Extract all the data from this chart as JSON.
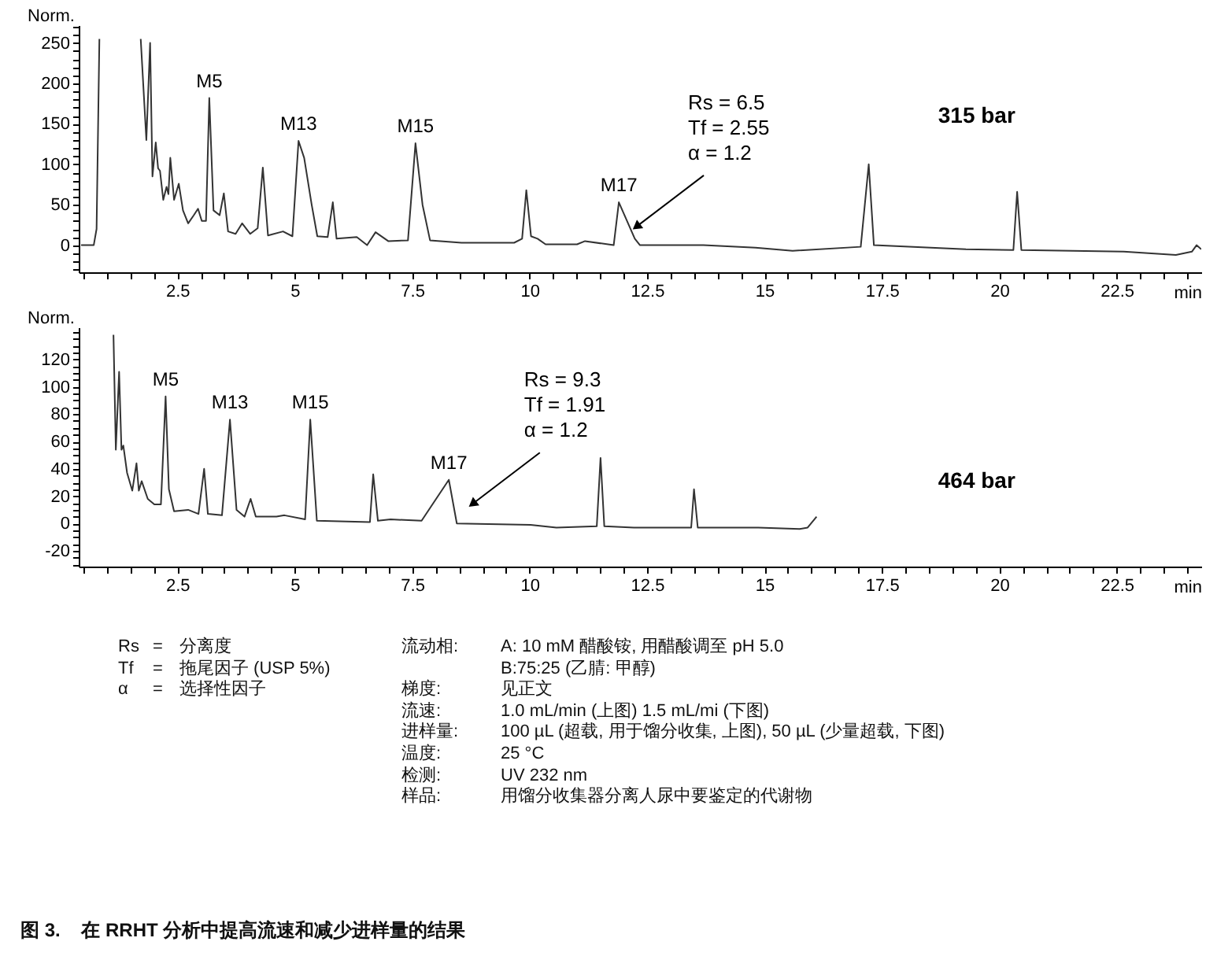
{
  "chart_data": [
    {
      "type": "line",
      "title": "315 bar",
      "ylabel": "Norm.",
      "xlabel": "min",
      "xlim": [
        0.4,
        24.3
      ],
      "ylim": [
        -33.5,
        272
      ],
      "xticks": [
        {
          "value": 0.5,
          "label": null
        },
        {
          "value": 1,
          "label": null
        },
        {
          "value": 1.5,
          "label": null
        },
        {
          "value": 2,
          "label": null
        },
        2.5,
        {
          "value": 3,
          "label": null
        },
        {
          "value": 3.5,
          "label": null
        },
        {
          "value": 4,
          "label": null
        },
        {
          "value": 4.5,
          "label": null
        },
        5,
        {
          "value": 5.5,
          "label": null
        },
        {
          "value": 6,
          "label": null
        },
        {
          "value": 6.5,
          "label": null
        },
        {
          "value": 7,
          "label": null
        },
        7.5,
        {
          "value": 8,
          "label": null
        },
        {
          "value": 8.5,
          "label": null
        },
        {
          "value": 9,
          "label": null
        },
        {
          "value": 9.5,
          "label": null
        },
        10,
        {
          "value": 10.5,
          "label": null
        },
        {
          "value": 11,
          "label": null
        },
        {
          "value": 11.5,
          "label": null
        },
        {
          "value": 12,
          "label": null
        },
        12.5,
        {
          "value": 13,
          "label": null
        },
        {
          "value": 13.5,
          "label": null
        },
        {
          "value": 14,
          "label": null
        },
        {
          "value": 14.5,
          "label": null
        },
        15,
        {
          "value": 15.5,
          "label": null
        },
        {
          "value": 16,
          "label": null
        },
        {
          "value": 16.5,
          "label": null
        },
        {
          "value": 17,
          "label": null
        },
        17.5,
        {
          "value": 18,
          "label": null
        },
        {
          "value": 18.5,
          "label": null
        },
        {
          "value": 19,
          "label": null
        },
        {
          "value": 19.5,
          "label": null
        },
        20,
        {
          "value": 20.5,
          "label": null
        },
        {
          "value": 21,
          "label": null
        },
        {
          "value": 21.5,
          "label": null
        },
        {
          "value": 22,
          "label": null
        },
        22.5,
        {
          "value": 23,
          "label": null
        },
        {
          "value": 23.5,
          "label": null
        },
        {
          "value": 24,
          "label": null
        }
      ],
      "yticks": [
        {
          "value": -30,
          "label": null
        },
        {
          "value": -20,
          "label": null
        },
        {
          "value": -10,
          "label": null
        },
        0,
        {
          "value": 10,
          "label": null
        },
        {
          "value": 20,
          "label": null
        },
        {
          "value": 30,
          "label": null
        },
        {
          "value": 40,
          "label": null
        },
        50,
        {
          "value": 60,
          "label": null
        },
        {
          "value": 70,
          "label": null
        },
        {
          "value": 80,
          "label": null
        },
        {
          "value": 90,
          "label": null
        },
        100,
        {
          "value": 110,
          "label": null
        },
        {
          "value": 120,
          "label": null
        },
        {
          "value": 130,
          "label": null
        },
        {
          "value": 140,
          "label": null
        },
        150,
        {
          "value": 160,
          "label": null
        },
        {
          "value": 170,
          "label": null
        },
        {
          "value": 180,
          "label": null
        },
        {
          "value": 190,
          "label": null
        },
        200,
        {
          "value": 210,
          "label": null
        },
        {
          "value": 220,
          "label": null
        },
        {
          "value": 230,
          "label": null
        },
        {
          "value": 240,
          "label": null
        },
        250,
        {
          "value": 260,
          "label": null
        },
        {
          "value": 270,
          "label": null
        }
      ],
      "series": [
        {
          "color": "#333333",
          "x": [
            0.45,
            0.72,
            0.78,
            0.84,
            1.3,
            1.72,
            1.84,
            1.92,
            1.97,
            2.04,
            2.09,
            2.13,
            2.2,
            2.27,
            2.31,
            2.35,
            2.43,
            2.53,
            2.62,
            2.73,
            2.85,
            2.94,
            3.02,
            3.11,
            3.18,
            3.27,
            3.4,
            3.49,
            3.58,
            3.74,
            3.88,
            4.05,
            4.21,
            4.32,
            4.43,
            4.75,
            4.95,
            5.08,
            5.2,
            5.36,
            5.48,
            5.7,
            5.81,
            5.89,
            6.32,
            6.54,
            6.72,
            6.99,
            7.41,
            7.57,
            7.72,
            7.88,
            8.55,
            9.67,
            9.84,
            9.93,
            10.03,
            10.17,
            10.34,
            11.01,
            11.18,
            11.79,
            11.9,
            12.24,
            12.35,
            13.7,
            14.81,
            15.6,
            17.05,
            17.22,
            17.33,
            19.29,
            20.3,
            20.38,
            20.47,
            22.65,
            23.76,
            24.1,
            24.2,
            24.3
          ],
          "values": [
            0,
            0,
            20,
            255,
            null,
            255,
            130,
            250,
            85,
            127,
            95,
            92,
            56,
            72,
            63,
            108,
            56,
            76,
            43,
            27,
            37,
            45,
            30,
            30,
            182,
            43,
            37,
            64,
            17,
            14,
            27,
            14,
            21,
            96,
            12,
            17,
            11,
            129,
            108,
            50,
            11,
            10,
            53,
            8,
            10,
            0,
            16,
            5,
            6,
            126,
            50,
            6,
            3,
            3,
            8,
            68,
            11,
            8,
            1,
            1,
            5,
            0,
            53,
            8,
            0,
            0,
            -3,
            -7,
            -2,
            100,
            0,
            -5,
            -6,
            66,
            -6,
            -8,
            -12,
            -8,
            0,
            -5
          ]
        }
      ],
      "annotations": [
        {
          "text": "M5",
          "x": 3.18,
          "y": 182
        },
        {
          "text": "M13",
          "x": 5.08,
          "y": 129
        },
        {
          "text": "M15",
          "x": 7.57,
          "y": 126
        },
        {
          "text": "M17",
          "x": 11.9,
          "y": 53
        },
        {
          "text": "Rs = 6.5\nTf = 2.55\nα = 1.2",
          "x": 12.3,
          "y": 24
        }
      ]
    },
    {
      "type": "line",
      "title": "464 bar",
      "ylabel": "Norm.",
      "xlabel": "min",
      "xlim": [
        0.4,
        24.3
      ],
      "ylim": [
        -31.5,
        143.5
      ],
      "xticks": [
        {
          "value": 0.5,
          "label": null
        },
        {
          "value": 1,
          "label": null
        },
        {
          "value": 1.5,
          "label": null
        },
        {
          "value": 2,
          "label": null
        },
        2.5,
        {
          "value": 3,
          "label": null
        },
        {
          "value": 3.5,
          "label": null
        },
        {
          "value": 4,
          "label": null
        },
        {
          "value": 4.5,
          "label": null
        },
        5,
        {
          "value": 5.5,
          "label": null
        },
        {
          "value": 6,
          "label": null
        },
        {
          "value": 6.5,
          "label": null
        },
        {
          "value": 7,
          "label": null
        },
        7.5,
        {
          "value": 8,
          "label": null
        },
        {
          "value": 8.5,
          "label": null
        },
        {
          "value": 9,
          "label": null
        },
        {
          "value": 9.5,
          "label": null
        },
        10,
        {
          "value": 10.5,
          "label": null
        },
        {
          "value": 11,
          "label": null
        },
        {
          "value": 11.5,
          "label": null
        },
        {
          "value": 12,
          "label": null
        },
        12.5,
        {
          "value": 13,
          "label": null
        },
        {
          "value": 13.5,
          "label": null
        },
        {
          "value": 14,
          "label": null
        },
        {
          "value": 14.5,
          "label": null
        },
        15,
        {
          "value": 15.5,
          "label": null
        },
        {
          "value": 16,
          "label": null
        },
        {
          "value": 16.5,
          "label": null
        },
        {
          "value": 17,
          "label": null
        },
        17.5,
        {
          "value": 18,
          "label": null
        },
        {
          "value": 18.5,
          "label": null
        },
        {
          "value": 19,
          "label": null
        },
        {
          "value": 19.5,
          "label": null
        },
        20,
        {
          "value": 20.5,
          "label": null
        },
        {
          "value": 21,
          "label": null
        },
        {
          "value": 21.5,
          "label": null
        },
        {
          "value": 22,
          "label": null
        },
        22.5,
        {
          "value": 23,
          "label": null
        },
        {
          "value": 23.5,
          "label": null
        },
        {
          "value": 24,
          "label": null
        }
      ],
      "yticks": [
        {
          "value": -30,
          "label": null
        },
        {
          "value": -25,
          "label": null
        },
        -20,
        {
          "value": -15,
          "label": null
        },
        {
          "value": -10,
          "label": null
        },
        {
          "value": -5,
          "label": null
        },
        0,
        {
          "value": 5,
          "label": null
        },
        {
          "value": 10,
          "label": null
        },
        {
          "value": 15,
          "label": null
        },
        20,
        {
          "value": 25,
          "label": null
        },
        {
          "value": 30,
          "label": null
        },
        {
          "value": 35,
          "label": null
        },
        40,
        {
          "value": 45,
          "label": null
        },
        {
          "value": 50,
          "label": null
        },
        {
          "value": 55,
          "label": null
        },
        60,
        {
          "value": 65,
          "label": null
        },
        {
          "value": 70,
          "label": null
        },
        {
          "value": 75,
          "label": null
        },
        80,
        {
          "value": 85,
          "label": null
        },
        {
          "value": 90,
          "label": null
        },
        {
          "value": 95,
          "label": null
        },
        100,
        {
          "value": 105,
          "label": null
        },
        {
          "value": 110,
          "label": null
        },
        {
          "value": 115,
          "label": null
        },
        120,
        {
          "value": 125,
          "label": null
        },
        {
          "value": 130,
          "label": null
        },
        {
          "value": 135,
          "label": null
        },
        {
          "value": 140,
          "label": null
        }
      ],
      "series": [
        {
          "color": "#333333",
          "x": [
            1.14,
            1.19,
            1.26,
            1.31,
            1.35,
            1.43,
            1.54,
            1.63,
            1.68,
            1.74,
            1.87,
            2.01,
            2.15,
            2.25,
            2.32,
            2.43,
            2.73,
            2.95,
            3.07,
            3.15,
            3.45,
            3.62,
            3.76,
            3.93,
            4.06,
            4.17,
            4.61,
            4.78,
            5.22,
            5.33,
            5.47,
            6.6,
            6.67,
            6.77,
            7.04,
            7.7,
            8.28,
            8.45,
            10.02,
            10.57,
            11.43,
            11.51,
            11.59,
            12.22,
            13.44,
            13.5,
            13.58,
            14.87,
            15.75,
            15.92,
            16.11
          ],
          "values": [
            138,
            54,
            111,
            54,
            57,
            37,
            24,
            44,
            24,
            31,
            18,
            14,
            14,
            93,
            25,
            9,
            10,
            7,
            40,
            7,
            6,
            76,
            10,
            5,
            18,
            5,
            5,
            6,
            3,
            76,
            2,
            1,
            36,
            2,
            3,
            2,
            32,
            0,
            -1,
            -3,
            -2,
            48,
            -2,
            -3,
            -3,
            25,
            -3,
            -3,
            -4,
            -3,
            5
          ]
        }
      ],
      "annotations": [
        {
          "text": "M5",
          "x": 2.25,
          "y": 93
        },
        {
          "text": "M13",
          "x": 3.62,
          "y": 76
        },
        {
          "text": "M15",
          "x": 5.33,
          "y": 76
        },
        {
          "text": "M17",
          "x": 8.28,
          "y": 32
        },
        {
          "text": "Rs = 9.3\nTf = 1.91\nα = 1.2",
          "x": 8.81,
          "y": 15
        }
      ]
    },
    {
      "type": "other",
      "title": "图 3.    在 RRHT 分析中提高流速和减少进样量的结果",
      "annotations": [
        "Rs = 分离度",
        "Tf = 拖尾因子 (USP 5%)",
        "α = 选择性因子",
        "流动相: A: 10 mM 醋酸铵, 用醋酸调至 pH 5.0",
        "B:75:25 (乙腈: 甲醇)",
        "梯度: 见正文",
        "流速: 1.0 mL/min (上图) 1.5 mL/mi (下图)",
        "进样量: 100 µL (超载, 用于馏分收集, 上图),  50 µL (少量超载, 下图)",
        "温度: 25 °C",
        "检测: UV 232 nm",
        "样品: 用馏分收集器分离人尿中要鉴定的代谢物"
      ]
    }
  ]
}
